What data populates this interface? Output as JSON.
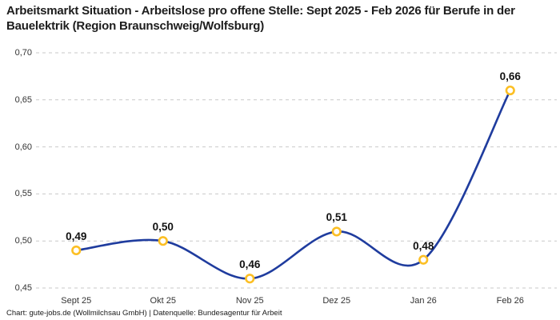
{
  "title": "Arbeitsmarkt Situation - Arbeitslose pro offene Stelle: Sept 2025 - Feb 2026 für Berufe in der Bauelektrik (Region Braunschweig/Wolfsburg)",
  "footer": "Chart: gute-jobs.de (Wollmilchsau GmbH) | Datenquelle: Bundesagentur für Arbeit",
  "chart_data": {
    "type": "line",
    "title": "Arbeitsmarkt Situation - Arbeitslose pro offene Stelle: Sept 2025 - Feb 2026 für Berufe in der Bauelektrik (Region Braunschweig/Wolfsburg)",
    "categories": [
      "Sept 25",
      "Okt 25",
      "Nov 25",
      "Dez 25",
      "Jan 26",
      "Feb 26"
    ],
    "values": [
      0.49,
      0.5,
      0.46,
      0.51,
      0.48,
      0.66
    ],
    "value_labels": [
      "0,49",
      "0,50",
      "0,46",
      "0,51",
      "0,48",
      "0,66"
    ],
    "ytick_values": [
      0.45,
      0.5,
      0.55,
      0.6,
      0.65,
      0.7
    ],
    "ytick_labels": [
      "0,45",
      "0,50",
      "0,55",
      "0,60",
      "0,65",
      "0,70"
    ],
    "ylim": [
      0.45,
      0.7
    ],
    "xlabel": "",
    "ylabel": "",
    "grid": "horizontal-dashed",
    "legend": "none",
    "smooth": true,
    "line_color": "#1f3c9e",
    "marker_ring_color": "#fcbf24",
    "marker_fill_color": "#ffffff",
    "gridline_color": "#c9c9c9"
  }
}
